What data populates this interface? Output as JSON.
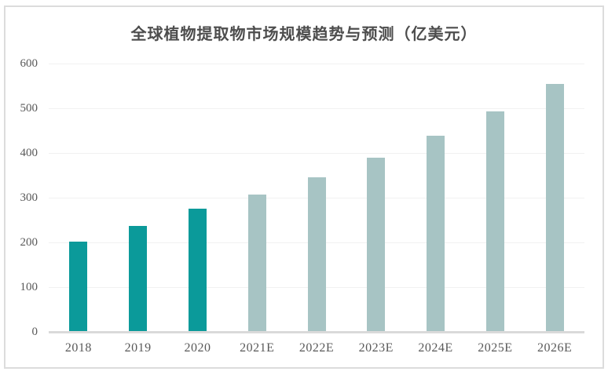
{
  "chart_data": {
    "type": "bar",
    "title": "全球植物提取物市场规模趋势与预测（亿美元）",
    "categories": [
      "2018",
      "2019",
      "2020",
      "2021E",
      "2022E",
      "2023E",
      "2024E",
      "2025E",
      "2026E"
    ],
    "values": [
      201,
      237,
      276,
      307,
      345,
      390,
      439,
      493,
      555
    ],
    "bar_types": [
      "actual",
      "actual",
      "actual",
      "forecast",
      "forecast",
      "forecast",
      "forecast",
      "forecast",
      "forecast"
    ],
    "colors": {
      "actual": "#0b9a9a",
      "forecast": "#a7c4c4"
    },
    "xlabel": "",
    "ylabel": "",
    "ylim": [
      0,
      600
    ],
    "ytick_step": 100,
    "yticks": [
      "0",
      "100",
      "200",
      "300",
      "400",
      "500",
      "600"
    ],
    "grid": "horizontal",
    "legend": "none",
    "background": "#ffffff",
    "border_color": "#dcdcdc",
    "axis_line_color": "#dadada",
    "gridline_color": "#f1f1f1",
    "text_color": "#595959"
  }
}
